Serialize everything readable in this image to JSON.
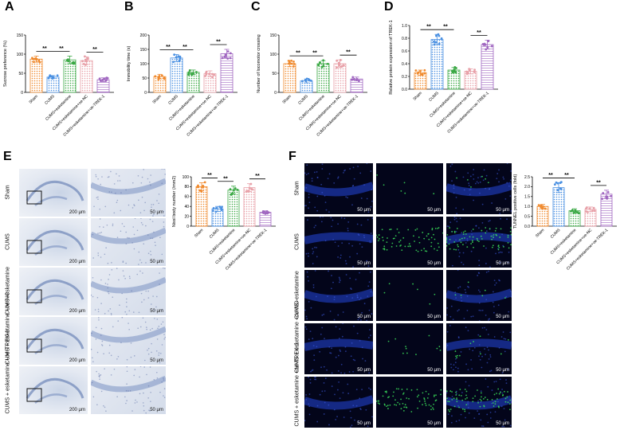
{
  "panel_letters": [
    "A",
    "B",
    "C",
    "D",
    "E",
    "F"
  ],
  "groups": [
    "Sham",
    "CUMS",
    "CUMS+esketamine",
    "CUMS+esketamine+oe-NC",
    "CUMS+esketamine+oe-TREK-1"
  ],
  "colors": {
    "sham": "#f08a2e",
    "cums": "#4a90e2",
    "esk": "#3aa844",
    "oenc": "#e8a0a8",
    "trek": "#a066c0"
  },
  "significance_marker": "**",
  "chart_data": [
    {
      "id": "A",
      "type": "bar",
      "ylabel": "Sucrose preference (%)",
      "ylim": [
        0,
        150
      ],
      "yticks": [
        0,
        50,
        100,
        150
      ],
      "categories": [
        "Sham",
        "CUMS",
        "CUMS+esketamine",
        "CUMS+esketamine+oe-NC",
        "CUMS+esketamine+oe-TREK-1"
      ],
      "values": [
        87,
        40,
        85,
        83,
        33
      ],
      "errors": [
        8,
        4,
        10,
        10,
        5
      ]
    },
    {
      "id": "B",
      "type": "bar",
      "ylabel": "Immobility time (s)",
      "ylim": [
        0,
        200
      ],
      "yticks": [
        0,
        50,
        100,
        150,
        200
      ],
      "categories": [
        "Sham",
        "CUMS",
        "CUMS+esketamine",
        "CUMS+esketamine+oe-NC",
        "CUMS+esketamine+oe-TREK-1"
      ],
      "values": [
        55,
        120,
        70,
        65,
        135
      ],
      "errors": [
        8,
        12,
        8,
        10,
        15
      ]
    },
    {
      "id": "C",
      "type": "bar",
      "ylabel": "Number of locomotor crossing",
      "ylim": [
        0,
        150
      ],
      "yticks": [
        0,
        50,
        100,
        150
      ],
      "categories": [
        "Sham",
        "CUMS",
        "CUMS+esketamine",
        "CUMS+esketamine+oe-NC",
        "CUMS+esketamine+oe-TREK-1"
      ],
      "values": [
        75,
        30,
        75,
        75,
        35
      ],
      "errors": [
        8,
        5,
        8,
        10,
        5
      ]
    },
    {
      "id": "D",
      "type": "bar",
      "ylabel": "Relative protein expression of TREK-1",
      "ylim": [
        0,
        1.0
      ],
      "yticks": [
        "0.0",
        "0.2",
        "0.4",
        "0.6",
        "0.8",
        "1.0"
      ],
      "categories": [
        "Sham",
        "CUMS",
        "CUMS+esketamine",
        "CUMS+esketamine+oe-NC",
        "CUMS+esketamine+oe-TREK-1"
      ],
      "values": [
        0.26,
        0.78,
        0.3,
        0.28,
        0.7
      ],
      "errors": [
        0.04,
        0.08,
        0.04,
        0.04,
        0.07
      ]
    },
    {
      "id": "E",
      "type": "bar",
      "ylabel": "Nissl body number (/mm2)",
      "ylim": [
        0,
        100
      ],
      "yticks": [
        0,
        20,
        40,
        60,
        80,
        100
      ],
      "categories": [
        "Sham",
        "CUMS",
        "CUMS+esketamine",
        "CUMS+esketamine+oe-NC",
        "CUMS+esketamine+oe-TREK-1"
      ],
      "values": [
        80,
        35,
        73,
        78,
        28
      ],
      "errors": [
        8,
        5,
        8,
        8,
        3
      ]
    },
    {
      "id": "F",
      "type": "bar",
      "ylabel": "TUNNEL positive cells (fold)",
      "ylim": [
        0,
        2.5
      ],
      "yticks": [
        "0.0",
        "0.5",
        "1.0",
        "1.5",
        "2.0",
        "2.5"
      ],
      "categories": [
        "Sham",
        "CUMS",
        "CUMS+esketamine",
        "CUMS+esketamine+oe-NC",
        "CUMS+esketamine+oe-TREK-1"
      ],
      "values": [
        1.0,
        1.95,
        0.78,
        0.85,
        1.62
      ],
      "errors": [
        0.1,
        0.25,
        0.1,
        0.12,
        0.2
      ]
    }
  ],
  "panelE": {
    "rows": [
      "Sham",
      "CUMS",
      "CUMS+esketamine",
      "CUMS + esketamine\n+oe-NC",
      "CUMS + esketamine\n+oe-TREK-1"
    ],
    "scale_low": "200 μm",
    "scale_high": "50 μm"
  },
  "panelF": {
    "rows": [
      "Sham",
      "CUMS",
      "CUMS+esketamine",
      "CUMS + esketamine\n+oe-NC",
      "CUMS + esketamine\n+oe-TREK-1"
    ],
    "scale": "50 μm"
  }
}
